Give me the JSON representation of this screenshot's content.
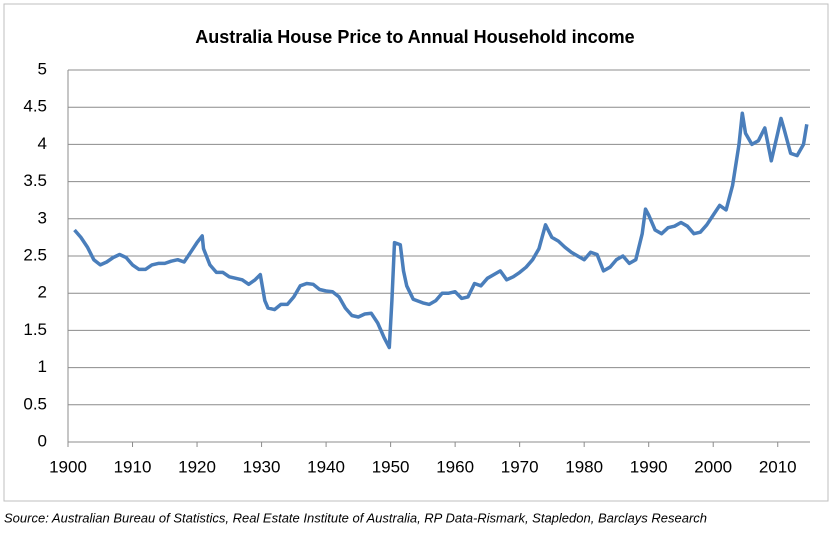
{
  "chart_data": {
    "type": "line",
    "title": "Australia House Price to Annual Household income",
    "source": "Source: Australian Bureau of Statistics, Real Estate Institute of Australia, RP Data-Rismark, Stapledon, Barclays Research",
    "x": [
      1901,
      1902,
      1903,
      1904,
      1905,
      1906,
      1907,
      1908,
      1909,
      1910,
      1911,
      1912,
      1913,
      1914,
      1915,
      1916,
      1917,
      1918,
      1919,
      1920,
      1920.8,
      1921,
      1922,
      1923,
      1924,
      1925,
      1926,
      1927,
      1928,
      1929,
      1929.8,
      1930.5,
      1931,
      1932,
      1933,
      1934,
      1935,
      1936,
      1937,
      1938,
      1939,
      1940,
      1941,
      1942,
      1943,
      1944,
      1945,
      1946,
      1947,
      1948,
      1949,
      1949.8,
      1950.2,
      1950.6,
      1951.5,
      1952,
      1952.5,
      1953.5,
      1955,
      1956,
      1957,
      1958,
      1959,
      1960,
      1961,
      1962,
      1963,
      1964,
      1965,
      1966,
      1967,
      1968,
      1969,
      1970,
      1971,
      1972,
      1973,
      1974,
      1975,
      1976,
      1977,
      1978,
      1979,
      1980,
      1981,
      1982,
      1983,
      1984,
      1985,
      1986,
      1987,
      1988,
      1989,
      1989.5,
      1990,
      1991,
      1992,
      1993,
      1994,
      1995,
      1996,
      1997,
      1998,
      1999,
      2000,
      2001,
      2002,
      2003,
      2004,
      2004.5,
      2005,
      2006,
      2007,
      2008,
      2009,
      2010,
      2010.5,
      2011,
      2012,
      2013,
      2014,
      2014.5
    ],
    "values": [
      2.85,
      2.75,
      2.62,
      2.45,
      2.38,
      2.42,
      2.48,
      2.52,
      2.48,
      2.38,
      2.32,
      2.32,
      2.38,
      2.4,
      2.4,
      2.43,
      2.45,
      2.42,
      2.55,
      2.68,
      2.77,
      2.6,
      2.38,
      2.28,
      2.28,
      2.22,
      2.2,
      2.18,
      2.12,
      2.18,
      2.25,
      1.9,
      1.8,
      1.78,
      1.85,
      1.85,
      1.95,
      2.1,
      2.13,
      2.12,
      2.05,
      2.03,
      2.02,
      1.95,
      1.8,
      1.7,
      1.68,
      1.72,
      1.73,
      1.6,
      1.4,
      1.27,
      1.9,
      2.68,
      2.65,
      2.3,
      2.1,
      1.92,
      1.87,
      1.85,
      1.9,
      2.0,
      2.0,
      2.02,
      1.93,
      1.95,
      2.13,
      2.1,
      2.2,
      2.25,
      2.3,
      2.18,
      2.22,
      2.28,
      2.35,
      2.45,
      2.6,
      2.92,
      2.75,
      2.7,
      2.62,
      2.55,
      2.5,
      2.45,
      2.55,
      2.52,
      2.3,
      2.35,
      2.45,
      2.5,
      2.4,
      2.45,
      2.8,
      3.13,
      3.05,
      2.85,
      2.8,
      2.88,
      2.9,
      2.95,
      2.9,
      2.8,
      2.82,
      2.92,
      3.05,
      3.18,
      3.12,
      3.45,
      4.0,
      4.42,
      4.15,
      4.0,
      4.05,
      4.22,
      3.78,
      4.15,
      4.35,
      4.2,
      3.88,
      3.85,
      4.0,
      4.27
    ],
    "color": "#4a7ebb",
    "xlim": [
      1900,
      2015
    ],
    "xticks": [
      1900,
      1910,
      1920,
      1930,
      1940,
      1950,
      1960,
      1970,
      1980,
      1990,
      2000,
      2010
    ],
    "ylim": [
      0,
      5
    ],
    "yticks": [
      0,
      0.5,
      1,
      1.5,
      2,
      2.5,
      3,
      3.5,
      4,
      4.5,
      5
    ],
    "grid": true
  }
}
